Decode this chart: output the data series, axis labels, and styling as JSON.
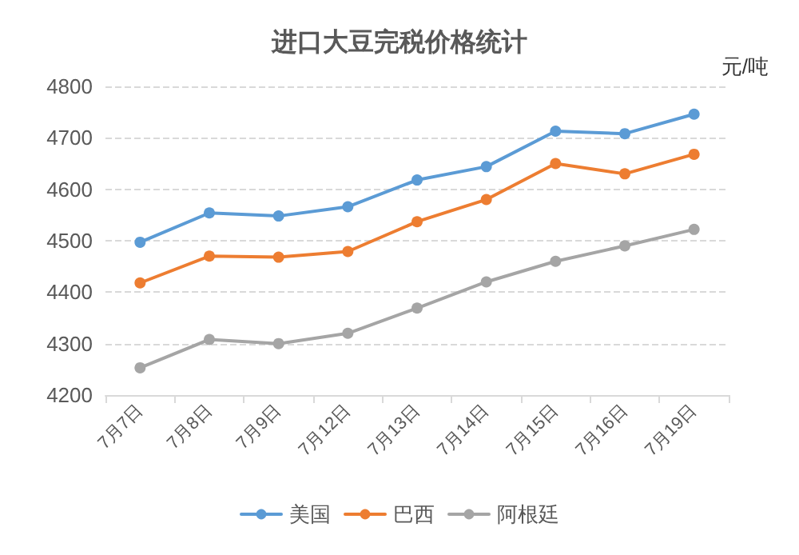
{
  "chart_data": {
    "type": "line",
    "title": "进口大豆完税价格统计",
    "ylabel": "元/吨",
    "categories": [
      "7月7日",
      "7月8日",
      "7月9日",
      "7月12日",
      "7月13日",
      "7月14日",
      "7月15日",
      "7月16日",
      "7月19日"
    ],
    "series": [
      {
        "name": "美国",
        "color": "#5b9bd5",
        "values": [
          4497,
          4554,
          4548,
          4566,
          4618,
          4644,
          4713,
          4708,
          4746
        ]
      },
      {
        "name": "巴西",
        "color": "#ed7d31",
        "values": [
          4418,
          4470,
          4468,
          4479,
          4537,
          4580,
          4650,
          4630,
          4668
        ]
      },
      {
        "name": "阿根廷",
        "color": "#a5a5a5",
        "values": [
          4253,
          4308,
          4300,
          4320,
          4369,
          4420,
          4460,
          4490,
          4522
        ]
      }
    ],
    "ylim": [
      4200,
      4800
    ],
    "yticks": [
      4200,
      4300,
      4400,
      4500,
      4600,
      4700,
      4800
    ],
    "grid": "y",
    "legend": "bottom",
    "marker": "circle",
    "line_style": "solid"
  }
}
